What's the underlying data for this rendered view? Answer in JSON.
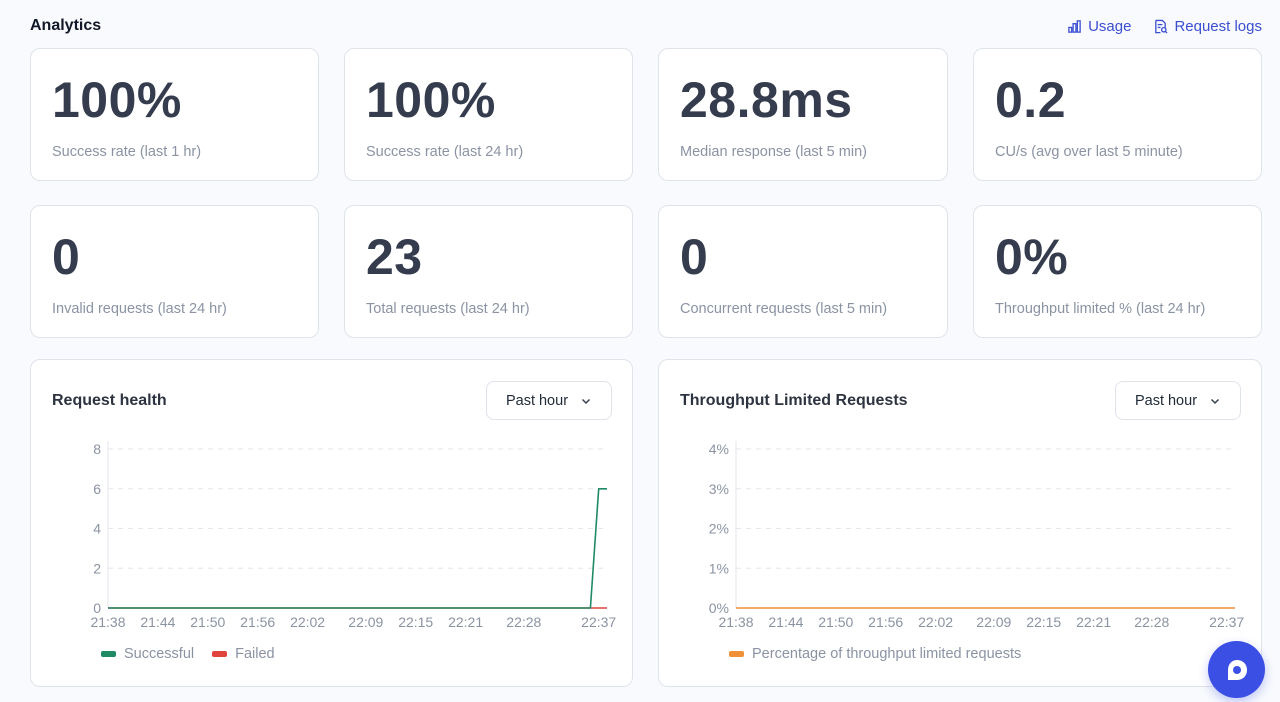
{
  "header": {
    "title": "Analytics",
    "usage_label": "Usage",
    "request_logs_label": "Request logs"
  },
  "stats": [
    {
      "value": "100%",
      "label": "Success rate (last 1 hr)"
    },
    {
      "value": "100%",
      "label": "Success rate (last 24 hr)"
    },
    {
      "value": "28.8ms",
      "label": "Median response (last 5 min)"
    },
    {
      "value": "0.2",
      "label": "CU/s (avg over last 5 minute)"
    },
    {
      "value": "0",
      "label": "Invalid requests (last 24 hr)"
    },
    {
      "value": "23",
      "label": "Total requests (last 24 hr)"
    },
    {
      "value": "0",
      "label": "Concurrent requests (last 5 min)"
    },
    {
      "value": "0%",
      "label": "Throughput limited % (last 24 hr)"
    }
  ],
  "panels": {
    "request_health": {
      "title": "Request health",
      "range": "Past hour"
    },
    "throughput": {
      "title": "Throughput Limited Requests",
      "range": "Past hour"
    }
  },
  "chart_data": [
    {
      "type": "line",
      "title": "Request health",
      "x_ticks": [
        "21:38",
        "21:44",
        "21:50",
        "21:56",
        "22:02",
        "22:09",
        "22:15",
        "22:21",
        "22:28",
        "22:37"
      ],
      "y_ticks": [
        "0",
        "2",
        "4",
        "6",
        "8"
      ],
      "ylim": [
        0,
        8
      ],
      "xlim": [
        "21:38",
        "22:38"
      ],
      "grid": true,
      "legend_position": "bottom-left",
      "series": [
        {
          "name": "Successful",
          "color": "#1f8a63",
          "points": [
            [
              "21:38",
              0
            ],
            [
              "22:35",
              0
            ],
            [
              "22:36",
              0
            ],
            [
              "22:37",
              6
            ],
            [
              "22:38",
              6
            ]
          ]
        },
        {
          "name": "Failed",
          "color": "#e0443c",
          "points": [
            [
              "21:38",
              0
            ],
            [
              "22:38",
              0
            ]
          ]
        }
      ]
    },
    {
      "type": "line",
      "title": "Throughput Limited Requests",
      "x_ticks": [
        "21:38",
        "21:44",
        "21:50",
        "21:56",
        "22:02",
        "22:09",
        "22:15",
        "22:21",
        "22:28",
        "22:37"
      ],
      "y_ticks": [
        "0%",
        "1%",
        "2%",
        "3%",
        "4%"
      ],
      "ylim": [
        0,
        4
      ],
      "xlim": [
        "21:38",
        "22:38"
      ],
      "grid": true,
      "legend_position": "bottom-left",
      "series": [
        {
          "name": "Percentage of throughput limited requests",
          "color": "#f0913a",
          "points": [
            [
              "21:38",
              0
            ],
            [
              "22:38",
              0
            ]
          ]
        }
      ]
    }
  ]
}
